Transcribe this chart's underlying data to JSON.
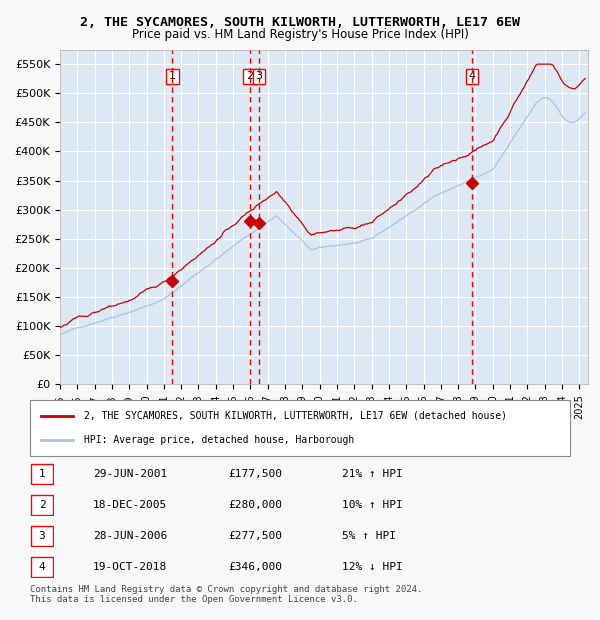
{
  "title": "2, THE SYCAMORES, SOUTH KILWORTH, LUTTERWORTH, LE17 6EW",
  "subtitle": "Price paid vs. HM Land Registry's House Price Index (HPI)",
  "hpi_color": "#aac4e0",
  "price_color": "#cc0000",
  "sale_marker_color": "#cc0000",
  "background_color": "#dce9f5",
  "plot_bg_color": "#dce9f5",
  "grid_color": "#ffffff",
  "ylim": [
    0,
    575000
  ],
  "yticks": [
    0,
    50000,
    100000,
    150000,
    200000,
    250000,
    300000,
    350000,
    400000,
    450000,
    500000,
    550000
  ],
  "ytick_labels": [
    "£0",
    "£50K",
    "£100K",
    "£150K",
    "£200K",
    "£250K",
    "£300K",
    "£350K",
    "£400K",
    "£450K",
    "£500K",
    "£550K"
  ],
  "xlim_start": 1995.0,
  "xlim_end": 2025.5,
  "xticks": [
    1995,
    1996,
    1997,
    1998,
    1999,
    2000,
    2001,
    2002,
    2003,
    2004,
    2005,
    2006,
    2007,
    2008,
    2009,
    2010,
    2011,
    2012,
    2013,
    2014,
    2015,
    2016,
    2017,
    2018,
    2019,
    2020,
    2021,
    2022,
    2023,
    2024,
    2025
  ],
  "sale_events": [
    {
      "label": "1",
      "date_num": 2001.49,
      "price": 177500,
      "date_str": "29-JUN-2001",
      "price_str": "£177,500",
      "pct": "21%",
      "direction": "↑"
    },
    {
      "label": "2",
      "date_num": 2005.96,
      "price": 280000,
      "date_str": "18-DEC-2005",
      "price_str": "£280,000",
      "pct": "10%",
      "direction": "↑"
    },
    {
      "label": "3",
      "date_num": 2006.49,
      "price": 277500,
      "date_str": "28-JUN-2006",
      "price_str": "£277,500",
      "pct": "5%",
      "direction": "↑"
    },
    {
      "label": "4",
      "date_num": 2018.8,
      "price": 346000,
      "date_str": "19-OCT-2018",
      "price_str": "£346,000",
      "pct": "12%",
      "direction": "↓"
    }
  ],
  "legend_line1": "2, THE SYCAMORES, SOUTH KILWORTH, LUTTERWORTH, LE17 6EW (detached house)",
  "legend_line2": "HPI: Average price, detached house, Harborough",
  "footnote": "Contains HM Land Registry data © Crown copyright and database right 2024.\nThis data is licensed under the Open Government Licence v3.0."
}
